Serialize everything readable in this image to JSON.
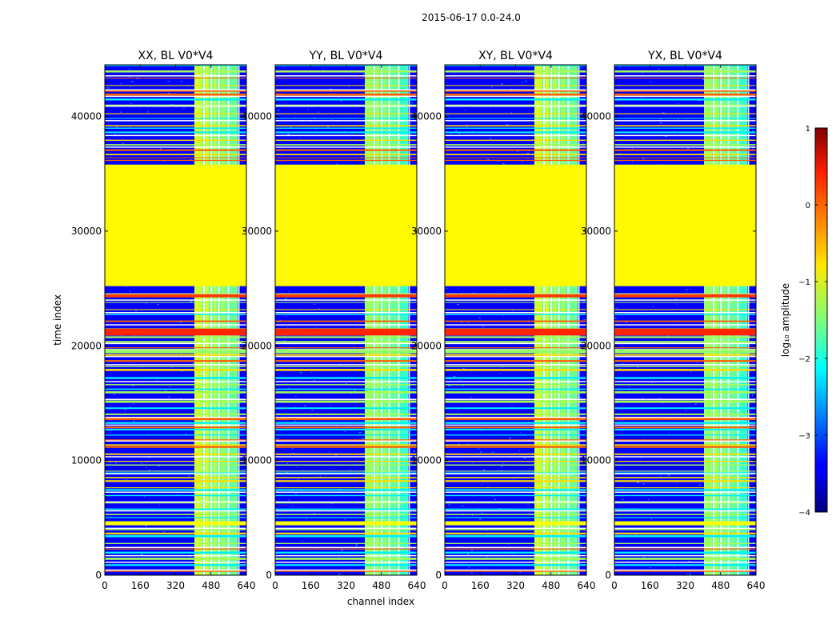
{
  "figure": {
    "suptitle": "2015-06-17 0.0-24.0"
  },
  "chart_data": {
    "type": "heatmap",
    "panels": [
      {
        "title": "XX, BL V0*V4"
      },
      {
        "title": "YY, BL V0*V4"
      },
      {
        "title": "XY, BL V0*V4"
      },
      {
        "title": "YX, BL V0*V4"
      }
    ],
    "xlabel": "channel index",
    "ylabel": "time index",
    "xlim": [
      0,
      640
    ],
    "ylim": [
      0,
      44500
    ],
    "xticks": [
      0,
      160,
      320,
      480,
      640
    ],
    "yticks": [
      0,
      10000,
      20000,
      30000,
      40000
    ],
    "xtick_labels": [
      "0",
      "160",
      "320",
      "480",
      "640"
    ],
    "ytick_labels": [
      "0",
      "10000",
      "20000",
      "30000",
      "40000"
    ],
    "colorbar": {
      "label": "log₁₀ amplitude",
      "colormap": "jet",
      "range": [
        -4,
        1
      ],
      "ticks": [
        1,
        0,
        -1,
        -2,
        -3,
        -4
      ],
      "tick_labels": [
        "1",
        "0",
        "−1",
        "−2",
        "−3",
        "−4"
      ]
    },
    "regions": [
      {
        "name": "flagged gap",
        "time_range": [
          25200,
          35800
        ],
        "level": -0.85
      },
      {
        "name": "background",
        "level": -3.4
      },
      {
        "name": "rfi band",
        "channel_range": [
          405,
          600
        ],
        "level": -1.7
      },
      {
        "name": "strong horizontal stripe",
        "time_range": [
          20900,
          21500
        ],
        "level": 0.2
      }
    ]
  }
}
